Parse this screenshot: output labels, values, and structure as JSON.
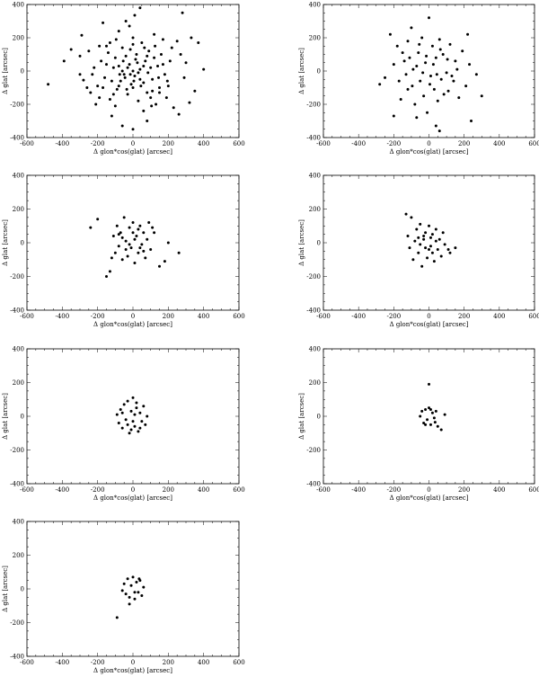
{
  "chart_data": [
    {
      "type": "scatter",
      "xlabel": "Δ glon*cos(glat) [arcsec]",
      "ylabel": "Δ glat [arcsec]",
      "xlim": [
        -600,
        600
      ],
      "ylim": [
        -400,
        400
      ],
      "x_ticks": [
        "-600",
        "-400",
        "-200",
        "0",
        "200",
        "400",
        "600"
      ],
      "y_ticks": [
        "400",
        "200",
        "0",
        "-200",
        "-400"
      ],
      "grid": false,
      "points": [
        [
          -480,
          -80
        ],
        [
          -390,
          60
        ],
        [
          -350,
          130
        ],
        [
          -300,
          90
        ],
        [
          -290,
          215
        ],
        [
          -280,
          -55
        ],
        [
          -240,
          -130
        ],
        [
          -220,
          20
        ],
        [
          -190,
          -160
        ],
        [
          -170,
          290
        ],
        [
          -150,
          150
        ],
        [
          -120,
          -270
        ],
        [
          -100,
          -210
        ],
        [
          -80,
          240
        ],
        [
          -60,
          -330
        ],
        [
          -40,
          300
        ],
        [
          -20,
          270
        ],
        [
          0,
          -350
        ],
        [
          10,
          335
        ],
        [
          40,
          380
        ],
        [
          60,
          -240
        ],
        [
          80,
          -300
        ],
        [
          100,
          -160
        ],
        [
          120,
          220
        ],
        [
          150,
          -130
        ],
        [
          170,
          190
        ],
        [
          200,
          -90
        ],
        [
          220,
          140
        ],
        [
          260,
          -260
        ],
        [
          280,
          350
        ],
        [
          300,
          50
        ],
        [
          320,
          -190
        ],
        [
          350,
          -120
        ],
        [
          370,
          170
        ],
        [
          400,
          10
        ],
        [
          330,
          200
        ],
        [
          -200,
          -90
        ],
        [
          -180,
          60
        ],
        [
          -160,
          -40
        ],
        [
          -140,
          110
        ],
        [
          -130,
          -170
        ],
        [
          -110,
          20
        ],
        [
          -100,
          80
        ],
        [
          -90,
          -110
        ],
        [
          -80,
          30
        ],
        [
          -70,
          -60
        ],
        [
          -60,
          140
        ],
        [
          -50,
          -20
        ],
        [
          -40,
          90
        ],
        [
          -30,
          -140
        ],
        [
          -20,
          40
        ],
        [
          -10,
          -80
        ],
        [
          0,
          160
        ],
        [
          10,
          -30
        ],
        [
          20,
          100
        ],
        [
          30,
          -180
        ],
        [
          40,
          10
        ],
        [
          50,
          170
        ],
        [
          60,
          -70
        ],
        [
          70,
          60
        ],
        [
          80,
          -130
        ],
        [
          90,
          120
        ],
        [
          100,
          20
        ],
        [
          110,
          -50
        ],
        [
          120,
          80
        ],
        [
          130,
          -200
        ],
        [
          140,
          30
        ],
        [
          150,
          -100
        ],
        [
          160,
          100
        ],
        [
          180,
          -20
        ],
        [
          190,
          -160
        ],
        [
          210,
          60
        ],
        [
          230,
          -220
        ],
        [
          250,
          180
        ],
        [
          -250,
          120
        ],
        [
          -230,
          -20
        ],
        [
          -210,
          -200
        ],
        [
          -190,
          150
        ],
        [
          -170,
          -100
        ],
        [
          -150,
          40
        ],
        [
          -120,
          -60
        ],
        [
          -95,
          190
        ],
        [
          -75,
          -20
        ],
        [
          -55,
          60
        ],
        [
          -35,
          -110
        ],
        [
          -15,
          130
        ],
        [
          5,
          -60
        ],
        [
          25,
          50
        ],
        [
          45,
          -90
        ],
        [
          65,
          140
        ],
        [
          85,
          -10
        ],
        [
          105,
          -210
        ],
        [
          125,
          150
        ],
        [
          145,
          -40
        ],
        [
          170,
          40
        ],
        [
          195,
          -60
        ],
        [
          -60,
          0
        ],
        [
          -30,
          20
        ],
        [
          0,
          0
        ],
        [
          30,
          -10
        ],
        [
          60,
          30
        ],
        [
          -45,
          -40
        ],
        [
          15,
          70
        ],
        [
          -15,
          -20
        ],
        [
          40,
          -50
        ],
        [
          -80,
          -90
        ],
        [
          80,
          90
        ],
        [
          -110,
          -140
        ],
        [
          110,
          -120
        ],
        [
          -130,
          170
        ],
        [
          0,
          -100
        ],
        [
          0,
          200
        ],
        [
          -300,
          -20
        ],
        [
          290,
          -40
        ],
        [
          -260,
          -100
        ],
        [
          270,
          100
        ]
      ]
    },
    {
      "type": "scatter",
      "xlabel": "Δ glon*cos(glat) [arcsec]",
      "ylabel": "Δ glat [arcsec]",
      "xlim": [
        -600,
        600
      ],
      "ylim": [
        -400,
        400
      ],
      "x_ticks": [
        "-600",
        "-400",
        "-200",
        "0",
        "200",
        "400",
        "600"
      ],
      "y_ticks": [
        "400",
        "200",
        "0",
        "-200",
        "-400"
      ],
      "grid": false,
      "points": [
        [
          -280,
          -80
        ],
        [
          -250,
          -40
        ],
        [
          -220,
          220
        ],
        [
          -200,
          -270
        ],
        [
          -180,
          150
        ],
        [
          -160,
          -170
        ],
        [
          -140,
          60
        ],
        [
          -120,
          -110
        ],
        [
          -100,
          260
        ],
        [
          -90,
          10
        ],
        [
          -80,
          -200
        ],
        [
          -60,
          110
        ],
        [
          -50,
          -60
        ],
        [
          -40,
          200
        ],
        [
          -30,
          -150
        ],
        [
          -20,
          50
        ],
        [
          -10,
          -250
        ],
        [
          0,
          320
        ],
        [
          10,
          -30
        ],
        [
          20,
          150
        ],
        [
          30,
          -110
        ],
        [
          40,
          80
        ],
        [
          50,
          -180
        ],
        [
          60,
          190
        ],
        [
          70,
          -50
        ],
        [
          80,
          100
        ],
        [
          100,
          -10
        ],
        [
          110,
          -120
        ],
        [
          120,
          160
        ],
        [
          140,
          -60
        ],
        [
          150,
          60
        ],
        [
          170,
          -160
        ],
        [
          190,
          120
        ],
        [
          210,
          -90
        ],
        [
          230,
          40
        ],
        [
          240,
          -300
        ],
        [
          220,
          220
        ],
        [
          300,
          -150
        ],
        [
          270,
          -20
        ],
        [
          -200,
          40
        ],
        [
          -170,
          -60
        ],
        [
          -150,
          110
        ],
        [
          -130,
          -20
        ],
        [
          -110,
          80
        ],
        [
          -95,
          -90
        ],
        [
          -70,
          30
        ],
        [
          -55,
          160
        ],
        [
          -35,
          -10
        ],
        [
          -15,
          90
        ],
        [
          5,
          -80
        ],
        [
          25,
          40
        ],
        [
          45,
          -20
        ],
        [
          65,
          130
        ],
        [
          85,
          -140
        ],
        [
          105,
          70
        ],
        [
          130,
          -30
        ],
        [
          160,
          10
        ],
        [
          -120,
          180
        ],
        [
          40,
          -330
        ],
        [
          60,
          -360
        ],
        [
          -70,
          -280
        ]
      ]
    },
    {
      "type": "scatter",
      "xlabel": "Δ glon*cos(glat) [arcsec]",
      "ylabel": "Δ glat [arcsec]",
      "xlim": [
        -600,
        600
      ],
      "ylim": [
        -400,
        400
      ],
      "x_ticks": [
        "-600",
        "-400",
        "-200",
        "0",
        "200",
        "400",
        "600"
      ],
      "y_ticks": [
        "400",
        "200",
        "0",
        "-200",
        "-400"
      ],
      "grid": false,
      "points": [
        [
          -240,
          90
        ],
        [
          -200,
          140
        ],
        [
          -150,
          -200
        ],
        [
          -130,
          -170
        ],
        [
          -110,
          40
        ],
        [
          -100,
          -60
        ],
        [
          -90,
          100
        ],
        [
          -80,
          -20
        ],
        [
          -70,
          60
        ],
        [
          -60,
          -100
        ],
        [
          -50,
          150
        ],
        [
          -40,
          10
        ],
        [
          -30,
          -80
        ],
        [
          -20,
          90
        ],
        [
          -10,
          -30
        ],
        [
          0,
          120
        ],
        [
          10,
          -120
        ],
        [
          20,
          40
        ],
        [
          30,
          -60
        ],
        [
          40,
          100
        ],
        [
          50,
          -10
        ],
        [
          60,
          60
        ],
        [
          70,
          -90
        ],
        [
          80,
          20
        ],
        [
          90,
          120
        ],
        [
          100,
          -40
        ],
        [
          120,
          60
        ],
        [
          150,
          -140
        ],
        [
          180,
          -110
        ],
        [
          200,
          0
        ],
        [
          260,
          -60
        ],
        [
          -60,
          30
        ],
        [
          -20,
          -10
        ],
        [
          10,
          20
        ],
        [
          40,
          -30
        ],
        [
          -40,
          -40
        ],
        [
          0,
          60
        ],
        [
          30,
          80
        ],
        [
          -80,
          50
        ],
        [
          60,
          -50
        ],
        [
          -120,
          -90
        ],
        [
          110,
          90
        ]
      ]
    },
    {
      "type": "scatter",
      "xlabel": "Δ glon*cos(glat) [arcsec]",
      "ylabel": "Δ glat [arcsec]",
      "xlim": [
        -600,
        600
      ],
      "ylim": [
        -400,
        400
      ],
      "x_ticks": [
        "-600",
        "-400",
        "-200",
        "0",
        "200",
        "400",
        "600"
      ],
      "y_ticks": [
        "400",
        "200",
        "0",
        "-200",
        "-400"
      ],
      "grid": false,
      "points": [
        [
          -130,
          170
        ],
        [
          -100,
          150
        ],
        [
          -120,
          40
        ],
        [
          -110,
          -30
        ],
        [
          -90,
          -100
        ],
        [
          -70,
          80
        ],
        [
          -60,
          -60
        ],
        [
          -50,
          110
        ],
        [
          -40,
          -140
        ],
        [
          -30,
          20
        ],
        [
          -20,
          60
        ],
        [
          -10,
          -90
        ],
        [
          0,
          100
        ],
        [
          10,
          -20
        ],
        [
          20,
          50
        ],
        [
          30,
          -110
        ],
        [
          40,
          80
        ],
        [
          50,
          -40
        ],
        [
          60,
          20
        ],
        [
          70,
          -80
        ],
        [
          80,
          60
        ],
        [
          90,
          -10
        ],
        [
          110,
          -40
        ],
        [
          150,
          -30
        ],
        [
          120,
          -60
        ],
        [
          -80,
          10
        ],
        [
          -50,
          -10
        ],
        [
          -20,
          -30
        ],
        [
          10,
          30
        ],
        [
          40,
          10
        ],
        [
          -30,
          40
        ],
        [
          0,
          -40
        ],
        [
          20,
          -60
        ],
        [
          -60,
          30
        ]
      ]
    },
    {
      "type": "scatter",
      "xlabel": "Δ glon*cos(glat) [arcsec]",
      "ylabel": "Δ glat [arcsec]",
      "xlim": [
        -600,
        600
      ],
      "ylim": [
        -400,
        400
      ],
      "x_ticks": [
        "-600",
        "-400",
        "-200",
        "0",
        "200",
        "400",
        "600"
      ],
      "y_ticks": [
        "400",
        "200",
        "0",
        "-200",
        "-400"
      ],
      "grid": false,
      "points": [
        [
          -90,
          10
        ],
        [
          -80,
          -40
        ],
        [
          -70,
          40
        ],
        [
          -60,
          -70
        ],
        [
          -50,
          70
        ],
        [
          -40,
          -20
        ],
        [
          -30,
          90
        ],
        [
          -20,
          -100
        ],
        [
          -10,
          30
        ],
        [
          0,
          110
        ],
        [
          10,
          -60
        ],
        [
          20,
          50
        ],
        [
          30,
          -90
        ],
        [
          40,
          20
        ],
        [
          50,
          -30
        ],
        [
          60,
          60
        ],
        [
          70,
          -50
        ],
        [
          80,
          0
        ],
        [
          -30,
          -50
        ],
        [
          0,
          -30
        ],
        [
          20,
          80
        ],
        [
          -60,
          20
        ],
        [
          40,
          -70
        ],
        [
          -10,
          -80
        ],
        [
          10,
          10
        ]
      ]
    },
    {
      "type": "scatter",
      "xlabel": "Δ glon*cos(glat) [arcsec]",
      "ylabel": "Δ glat [arcsec]",
      "xlim": [
        -600,
        600
      ],
      "ylim": [
        -400,
        400
      ],
      "x_ticks": [
        "-600",
        "-400",
        "-200",
        "0",
        "200",
        "400",
        "600"
      ],
      "y_ticks": [
        "400",
        "200",
        "0",
        "-200",
        "-400"
      ],
      "grid": false,
      "points": [
        [
          0,
          190
        ],
        [
          -40,
          30
        ],
        [
          -30,
          -40
        ],
        [
          -20,
          40
        ],
        [
          -10,
          -20
        ],
        [
          0,
          50
        ],
        [
          10,
          -50
        ],
        [
          20,
          20
        ],
        [
          30,
          -10
        ],
        [
          40,
          30
        ],
        [
          50,
          -60
        ],
        [
          70,
          -80
        ],
        [
          90,
          10
        ],
        [
          -50,
          0
        ],
        [
          -20,
          -50
        ],
        [
          10,
          40
        ],
        [
          35,
          -35
        ]
      ]
    },
    {
      "type": "scatter",
      "xlabel": "Δ glon*cos(glat) [arcsec]",
      "ylabel": "Δ glat [arcsec]",
      "xlim": [
        -600,
        600
      ],
      "ylim": [
        -400,
        400
      ],
      "x_ticks": [
        "-600",
        "-400",
        "-200",
        "0",
        "200",
        "400",
        "600"
      ],
      "y_ticks": [
        "400",
        "200",
        "0",
        "-200",
        "-400"
      ],
      "grid": false,
      "points": [
        [
          -90,
          -170
        ],
        [
          -50,
          30
        ],
        [
          -40,
          -30
        ],
        [
          -30,
          60
        ],
        [
          -20,
          -50
        ],
        [
          -10,
          20
        ],
        [
          0,
          70
        ],
        [
          10,
          -60
        ],
        [
          20,
          40
        ],
        [
          30,
          -20
        ],
        [
          40,
          50
        ],
        [
          50,
          -40
        ],
        [
          60,
          10
        ],
        [
          -60,
          -10
        ],
        [
          -20,
          -90
        ],
        [
          10,
          -20
        ],
        [
          35,
          60
        ]
      ]
    }
  ]
}
